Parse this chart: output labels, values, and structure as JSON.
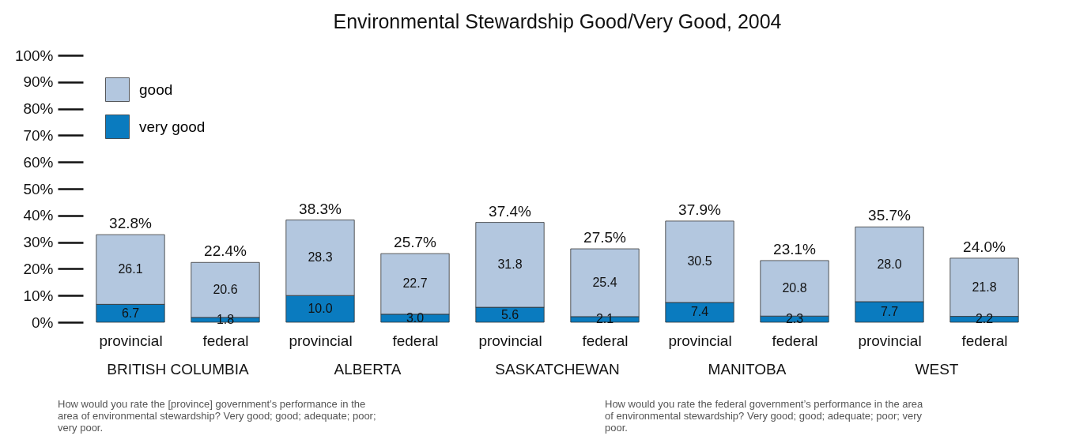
{
  "chart_data": {
    "type": "bar",
    "title": "Environmental Stewardship Good/Very Good, 2004",
    "categories": [
      "provincial",
      "federal",
      "provincial",
      "federal",
      "provincial",
      "federal",
      "provincial",
      "federal",
      "provincial",
      "federal"
    ],
    "stacked": true,
    "series": [
      {
        "name": "very good",
        "color": "#0a7bbf",
        "values": [
          6.7,
          1.8,
          10.0,
          3.0,
          5.6,
          2.1,
          7.4,
          2.3,
          7.7,
          2.2
        ],
        "value_labels": [
          "6.7",
          "1.8",
          "10.0",
          "3.0",
          "5.6",
          "2.1",
          "7.4",
          "2.3",
          "7.7",
          "2.2"
        ]
      },
      {
        "name": "good",
        "color": "#b3c7df",
        "values": [
          26.1,
          20.6,
          28.3,
          22.7,
          31.8,
          25.4,
          30.5,
          20.8,
          28.0,
          21.8
        ],
        "value_labels": [
          "26.1",
          "20.6",
          "28.3",
          "22.7",
          "31.8",
          "25.4",
          "30.5",
          "20.8",
          "28.0",
          "21.8"
        ]
      }
    ],
    "totals": [
      "32.8%",
      "22.4%",
      "38.3%",
      "25.7%",
      "37.4%",
      "27.5%",
      "37.9%",
      "23.1%",
      "35.7%",
      "24.0%"
    ],
    "ylim": [
      0,
      100
    ],
    "yticks": [
      {
        "value": 0,
        "label": "0%"
      },
      {
        "value": 10,
        "label": "10%"
      },
      {
        "value": 20,
        "label": "20%"
      },
      {
        "value": 30,
        "label": "30%"
      },
      {
        "value": 40,
        "label": "40%"
      },
      {
        "value": 50,
        "label": "50%"
      },
      {
        "value": 60,
        "label": "60%"
      },
      {
        "value": 70,
        "label": "70%"
      },
      {
        "value": 80,
        "label": "80%"
      },
      {
        "value": 90,
        "label": "90%"
      },
      {
        "value": 100,
        "label": "100%"
      }
    ],
    "grid": false,
    "legend": "top left",
    "annotations": [
      "BRITISH COLUMBIA",
      "ALBERTA",
      "SASKATCHEWAN",
      "MANITOBA",
      "WEST",
      "How would you rate the [province] government’s performance in the area of environmental stewardship?  Very good; good; adequate; poor; very poor.",
      "How would you rate the federal government’s performance in the area of environmental stewardship?  Very good; good; adequate; poor; very poor."
    ]
  }
}
